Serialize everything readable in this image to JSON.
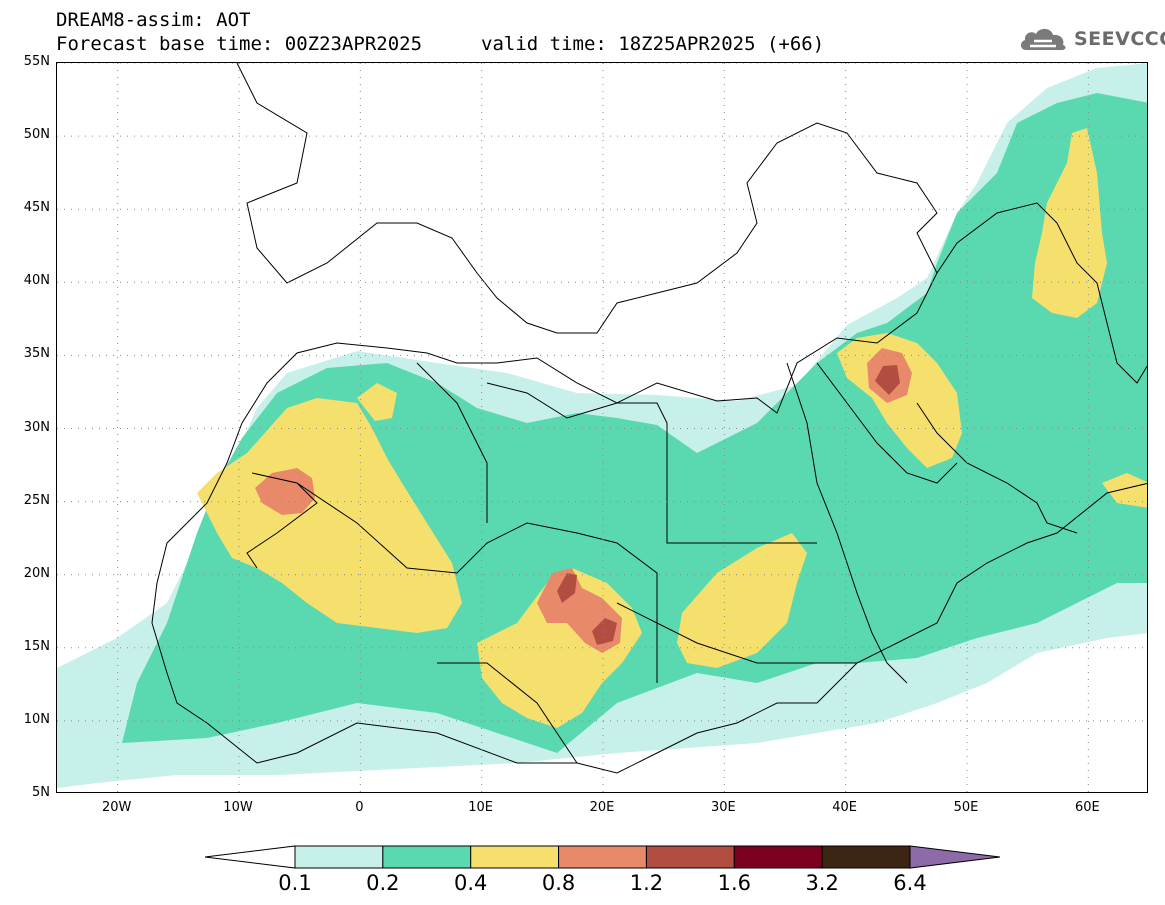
{
  "header": {
    "title": "DREAM8-assim: AOT",
    "base_time": "Forecast base time: 00Z23APR2025",
    "valid_time": "valid time: 18Z25APR2025 (+66)",
    "logo_text": "SEEVCCC",
    "logo_icon": "cloud-icon"
  },
  "map": {
    "lon_range": [
      -25,
      65
    ],
    "lat_range": [
      5,
      55
    ],
    "y_ticks": [
      {
        "lat": 55,
        "label": "55N"
      },
      {
        "lat": 50,
        "label": "50N"
      },
      {
        "lat": 45,
        "label": "45N"
      },
      {
        "lat": 40,
        "label": "40N"
      },
      {
        "lat": 35,
        "label": "35N"
      },
      {
        "lat": 30,
        "label": "30N"
      },
      {
        "lat": 25,
        "label": "25N"
      },
      {
        "lat": 20,
        "label": "20N"
      },
      {
        "lat": 15,
        "label": "15N"
      },
      {
        "lat": 10,
        "label": "10N"
      },
      {
        "lat": 5,
        "label": "5N"
      }
    ],
    "x_ticks": [
      {
        "lon": -20,
        "label": "20W"
      },
      {
        "lon": -10,
        "label": "10W"
      },
      {
        "lon": 0,
        "label": "0"
      },
      {
        "lon": 10,
        "label": "10E"
      },
      {
        "lon": 20,
        "label": "20E"
      },
      {
        "lon": 30,
        "label": "30E"
      },
      {
        "lon": 40,
        "label": "40E"
      },
      {
        "lon": 50,
        "label": "50E"
      },
      {
        "lon": 60,
        "label": "60E"
      }
    ],
    "grid": "dotted",
    "levels": [
      {
        "range": "0.1-0.2",
        "color": "#c7f0ea"
      },
      {
        "range": "0.2-0.4",
        "color": "#5ad9b0"
      },
      {
        "range": "0.4-0.8",
        "color": "#f5e06e"
      },
      {
        "range": "0.8-1.2",
        "color": "#e8896a"
      },
      {
        "range": "1.2-1.6",
        "color": "#b24d42"
      },
      {
        "range": "1.6-3.2",
        "color": "#7c0020"
      },
      {
        "range": "3.2-6.4",
        "color": "#3d2514"
      },
      {
        "range": ">6.4",
        "color": "#8e6aa8"
      }
    ]
  },
  "colorbar": {
    "labels": [
      "0.1",
      "0.2",
      "0.4",
      "0.8",
      "1.2",
      "1.6",
      "3.2",
      "6.4"
    ],
    "colors": [
      "#c7f0ea",
      "#5ad9b0",
      "#f5e06e",
      "#e8896a",
      "#b24d42",
      "#7c0020",
      "#3d2514"
    ],
    "under_color": "#ffffff",
    "over_color": "#8e6aa8"
  }
}
